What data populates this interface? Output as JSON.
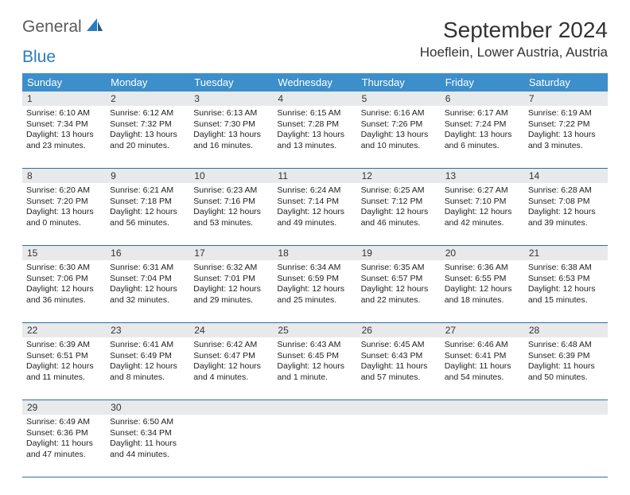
{
  "logo": {
    "word1": "General",
    "word2": "Blue"
  },
  "title": "September 2024",
  "location": "Hoeflein, Lower Austria, Austria",
  "header_bg": "#3c8fca",
  "daynum_bg": "#e8e9ea",
  "border_color": "#2e6fa3",
  "weekdays": [
    "Sunday",
    "Monday",
    "Tuesday",
    "Wednesday",
    "Thursday",
    "Friday",
    "Saturday"
  ],
  "days": [
    {
      "n": "1",
      "sr": "Sunrise: 6:10 AM",
      "ss": "Sunset: 7:34 PM",
      "d1": "Daylight: 13 hours",
      "d2": "and 23 minutes."
    },
    {
      "n": "2",
      "sr": "Sunrise: 6:12 AM",
      "ss": "Sunset: 7:32 PM",
      "d1": "Daylight: 13 hours",
      "d2": "and 20 minutes."
    },
    {
      "n": "3",
      "sr": "Sunrise: 6:13 AM",
      "ss": "Sunset: 7:30 PM",
      "d1": "Daylight: 13 hours",
      "d2": "and 16 minutes."
    },
    {
      "n": "4",
      "sr": "Sunrise: 6:15 AM",
      "ss": "Sunset: 7:28 PM",
      "d1": "Daylight: 13 hours",
      "d2": "and 13 minutes."
    },
    {
      "n": "5",
      "sr": "Sunrise: 6:16 AM",
      "ss": "Sunset: 7:26 PM",
      "d1": "Daylight: 13 hours",
      "d2": "and 10 minutes."
    },
    {
      "n": "6",
      "sr": "Sunrise: 6:17 AM",
      "ss": "Sunset: 7:24 PM",
      "d1": "Daylight: 13 hours",
      "d2": "and 6 minutes."
    },
    {
      "n": "7",
      "sr": "Sunrise: 6:19 AM",
      "ss": "Sunset: 7:22 PM",
      "d1": "Daylight: 13 hours",
      "d2": "and 3 minutes."
    },
    {
      "n": "8",
      "sr": "Sunrise: 6:20 AM",
      "ss": "Sunset: 7:20 PM",
      "d1": "Daylight: 13 hours",
      "d2": "and 0 minutes."
    },
    {
      "n": "9",
      "sr": "Sunrise: 6:21 AM",
      "ss": "Sunset: 7:18 PM",
      "d1": "Daylight: 12 hours",
      "d2": "and 56 minutes."
    },
    {
      "n": "10",
      "sr": "Sunrise: 6:23 AM",
      "ss": "Sunset: 7:16 PM",
      "d1": "Daylight: 12 hours",
      "d2": "and 53 minutes."
    },
    {
      "n": "11",
      "sr": "Sunrise: 6:24 AM",
      "ss": "Sunset: 7:14 PM",
      "d1": "Daylight: 12 hours",
      "d2": "and 49 minutes."
    },
    {
      "n": "12",
      "sr": "Sunrise: 6:25 AM",
      "ss": "Sunset: 7:12 PM",
      "d1": "Daylight: 12 hours",
      "d2": "and 46 minutes."
    },
    {
      "n": "13",
      "sr": "Sunrise: 6:27 AM",
      "ss": "Sunset: 7:10 PM",
      "d1": "Daylight: 12 hours",
      "d2": "and 42 minutes."
    },
    {
      "n": "14",
      "sr": "Sunrise: 6:28 AM",
      "ss": "Sunset: 7:08 PM",
      "d1": "Daylight: 12 hours",
      "d2": "and 39 minutes."
    },
    {
      "n": "15",
      "sr": "Sunrise: 6:30 AM",
      "ss": "Sunset: 7:06 PM",
      "d1": "Daylight: 12 hours",
      "d2": "and 36 minutes."
    },
    {
      "n": "16",
      "sr": "Sunrise: 6:31 AM",
      "ss": "Sunset: 7:04 PM",
      "d1": "Daylight: 12 hours",
      "d2": "and 32 minutes."
    },
    {
      "n": "17",
      "sr": "Sunrise: 6:32 AM",
      "ss": "Sunset: 7:01 PM",
      "d1": "Daylight: 12 hours",
      "d2": "and 29 minutes."
    },
    {
      "n": "18",
      "sr": "Sunrise: 6:34 AM",
      "ss": "Sunset: 6:59 PM",
      "d1": "Daylight: 12 hours",
      "d2": "and 25 minutes."
    },
    {
      "n": "19",
      "sr": "Sunrise: 6:35 AM",
      "ss": "Sunset: 6:57 PM",
      "d1": "Daylight: 12 hours",
      "d2": "and 22 minutes."
    },
    {
      "n": "20",
      "sr": "Sunrise: 6:36 AM",
      "ss": "Sunset: 6:55 PM",
      "d1": "Daylight: 12 hours",
      "d2": "and 18 minutes."
    },
    {
      "n": "21",
      "sr": "Sunrise: 6:38 AM",
      "ss": "Sunset: 6:53 PM",
      "d1": "Daylight: 12 hours",
      "d2": "and 15 minutes."
    },
    {
      "n": "22",
      "sr": "Sunrise: 6:39 AM",
      "ss": "Sunset: 6:51 PM",
      "d1": "Daylight: 12 hours",
      "d2": "and 11 minutes."
    },
    {
      "n": "23",
      "sr": "Sunrise: 6:41 AM",
      "ss": "Sunset: 6:49 PM",
      "d1": "Daylight: 12 hours",
      "d2": "and 8 minutes."
    },
    {
      "n": "24",
      "sr": "Sunrise: 6:42 AM",
      "ss": "Sunset: 6:47 PM",
      "d1": "Daylight: 12 hours",
      "d2": "and 4 minutes."
    },
    {
      "n": "25",
      "sr": "Sunrise: 6:43 AM",
      "ss": "Sunset: 6:45 PM",
      "d1": "Daylight: 12 hours",
      "d2": "and 1 minute."
    },
    {
      "n": "26",
      "sr": "Sunrise: 6:45 AM",
      "ss": "Sunset: 6:43 PM",
      "d1": "Daylight: 11 hours",
      "d2": "and 57 minutes."
    },
    {
      "n": "27",
      "sr": "Sunrise: 6:46 AM",
      "ss": "Sunset: 6:41 PM",
      "d1": "Daylight: 11 hours",
      "d2": "and 54 minutes."
    },
    {
      "n": "28",
      "sr": "Sunrise: 6:48 AM",
      "ss": "Sunset: 6:39 PM",
      "d1": "Daylight: 11 hours",
      "d2": "and 50 minutes."
    },
    {
      "n": "29",
      "sr": "Sunrise: 6:49 AM",
      "ss": "Sunset: 6:36 PM",
      "d1": "Daylight: 11 hours",
      "d2": "and 47 minutes."
    },
    {
      "n": "30",
      "sr": "Sunrise: 6:50 AM",
      "ss": "Sunset: 6:34 PM",
      "d1": "Daylight: 11 hours",
      "d2": "and 44 minutes."
    }
  ]
}
